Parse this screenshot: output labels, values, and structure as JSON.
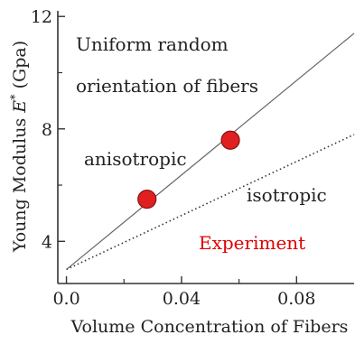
{
  "chart_data": {
    "type": "line",
    "xlabel": "Volume Concentration of Fibers",
    "ylabel_prefix": "Young Modulus ",
    "ylabel_var": "E",
    "ylabel_sup": "*",
    "ylabel_suffix": " (Gpa)",
    "xlim": [
      -0.003,
      0.1
    ],
    "ylim": [
      2.5,
      12.2
    ],
    "x_ticks": [
      0.0,
      0.04,
      0.08
    ],
    "x_tick_labels": [
      "0.0",
      "0.04",
      "0.08"
    ],
    "y_ticks": [
      4,
      8,
      12
    ],
    "y_tick_labels": [
      "4",
      "8",
      "12"
    ],
    "grid": false,
    "series": [
      {
        "name": "anisotropic",
        "style": "solid",
        "color": "#666666",
        "x": [
          0.0,
          0.1
        ],
        "y": [
          3.0,
          11.4
        ]
      },
      {
        "name": "isotropic",
        "style": "dotted",
        "color": "#333333",
        "x": [
          0.0,
          0.1
        ],
        "y": [
          3.0,
          7.8
        ]
      },
      {
        "name": "Experiment",
        "style": "markers",
        "color": "#e02020",
        "x": [
          0.028,
          0.057
        ],
        "y": [
          5.5,
          7.6
        ]
      }
    ],
    "annotations": {
      "line1": "Uniform random",
      "line2": "orientation of fibers",
      "anisotropic": "anisotropic",
      "isotropic": "isotropic",
      "experiment": "Experiment"
    }
  }
}
